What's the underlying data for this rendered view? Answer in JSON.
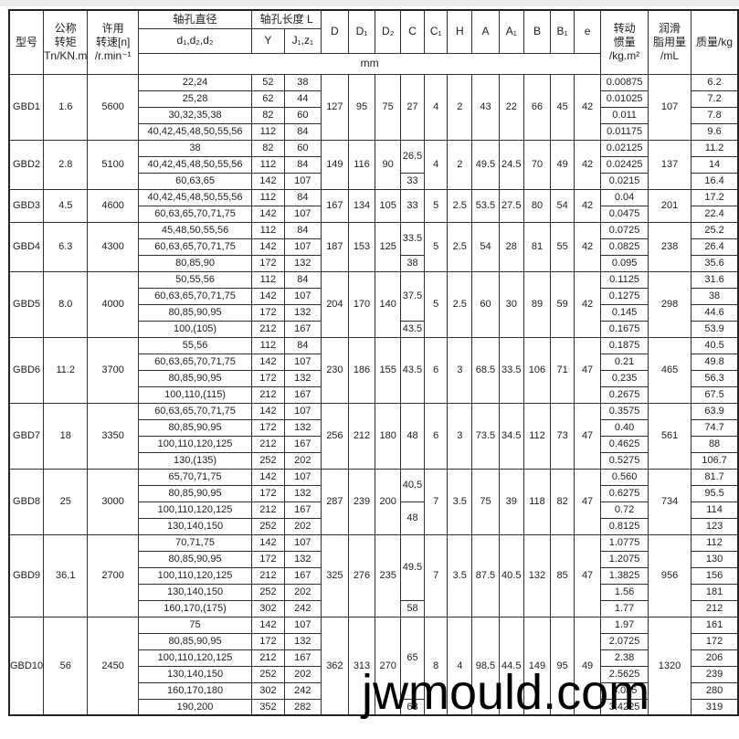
{
  "page": {
    "watermark": "jwmould.com"
  },
  "table": {
    "headers": {
      "model": "型号",
      "torque": "公称\n转矩\nTn/KN.m",
      "speed": "许用\n转速[n]\n/r.min⁻¹",
      "bore_dia": "轴孔直径",
      "bore_dia_sub": "d₁,d₂,d₂",
      "bore_len": "轴孔长度 L",
      "Y": "Y",
      "Jz": "J₁,z₁",
      "D": "D",
      "D1": "D₁",
      "D2": "D₂",
      "C": "C",
      "C1": "C₁",
      "H": "H",
      "A": "A",
      "A1": "A₁",
      "B": "B",
      "B1": "B₁",
      "e": "e",
      "inertia": "转动\n惯量\n/kg.m²",
      "grease": "润滑\n脂用量\n/mL",
      "mass": "质量/kg",
      "unit": "mm"
    },
    "models": [
      {
        "model": "GBD1",
        "torque": "1.6",
        "speed": "5600",
        "D": "127",
        "D1": "95",
        "D2": "75",
        "C": [
          {
            "v": "27",
            "span": 4
          }
        ],
        "C1": "4",
        "H": "2",
        "A": "43",
        "A1": "22",
        "B": "66",
        "B1": "45",
        "e": "42",
        "grease": "107",
        "rows": [
          {
            "bore": "22,24",
            "Y": "52",
            "Jz": "38",
            "inertia": "0.00875",
            "mass": "6.2"
          },
          {
            "bore": "25,28",
            "Y": "62",
            "Jz": "44",
            "inertia": "0.01025",
            "mass": "7.2"
          },
          {
            "bore": "30,32,35,38",
            "Y": "82",
            "Jz": "60",
            "inertia": "0.011",
            "mass": "7.8"
          },
          {
            "bore": "40,42,45,48,50,55,56",
            "Y": "112",
            "Jz": "84",
            "inertia": "0.01175",
            "mass": "9.6"
          }
        ]
      },
      {
        "model": "GBD2",
        "torque": "2.8",
        "speed": "5100",
        "D": "149",
        "D1": "116",
        "D2": "90",
        "C": [
          {
            "v": "26.5",
            "span": 2
          },
          {
            "v": "33",
            "span": 1
          }
        ],
        "C1": "4",
        "H": "2",
        "A": "49.5",
        "A1": "24.5",
        "B": "70",
        "B1": "49",
        "e": "42",
        "grease": "137",
        "rows": [
          {
            "bore": "38",
            "Y": "82",
            "Jz": "60",
            "inertia": "0.02125",
            "mass": "11.2"
          },
          {
            "bore": "40,42,45,48,50,55,56",
            "Y": "112",
            "Jz": "84",
            "inertia": "0.02425",
            "mass": "14"
          },
          {
            "bore": "60,63,65",
            "Y": "142",
            "Jz": "107",
            "inertia": "0.0215",
            "mass": "16.4"
          }
        ]
      },
      {
        "model": "GBD3",
        "torque": "4.5",
        "speed": "4600",
        "D": "167",
        "D1": "134",
        "D2": "105",
        "C": [
          {
            "v": "33",
            "span": 2
          }
        ],
        "C1": "5",
        "H": "2.5",
        "A": "53.5",
        "A1": "27.5",
        "B": "80",
        "B1": "54",
        "e": "42",
        "grease": "201",
        "rows": [
          {
            "bore": "40,42,45,48,50,55,56",
            "Y": "112",
            "Jz": "84",
            "inertia": "0.04",
            "mass": "17.2"
          },
          {
            "bore": "60,63,65,70,71,75",
            "Y": "142",
            "Jz": "107",
            "inertia": "0.0475",
            "mass": "22.4"
          }
        ]
      },
      {
        "model": "GBD4",
        "torque": "6.3",
        "speed": "4300",
        "D": "187",
        "D1": "153",
        "D2": "125",
        "C": [
          {
            "v": "33.5",
            "span": 2
          },
          {
            "v": "38",
            "span": 1
          }
        ],
        "C1": "5",
        "H": "2.5",
        "A": "54",
        "A1": "28",
        "B": "81",
        "B1": "55",
        "e": "42",
        "grease": "238",
        "rows": [
          {
            "bore": "45,48,50,55,56",
            "Y": "112",
            "Jz": "84",
            "inertia": "0.0725",
            "mass": "25.2"
          },
          {
            "bore": "60,63,65,70,71,75",
            "Y": "142",
            "Jz": "107",
            "inertia": "0.0825",
            "mass": "26.4"
          },
          {
            "bore": "80,85,90",
            "Y": "172",
            "Jz": "132",
            "inertia": "0.095",
            "mass": "35.6"
          }
        ]
      },
      {
        "model": "GBD5",
        "torque": "8.0",
        "speed": "4000",
        "D": "204",
        "D1": "170",
        "D2": "140",
        "C": [
          {
            "v": "37.5",
            "span": 3
          },
          {
            "v": "43.5",
            "span": 1
          }
        ],
        "C1": "5",
        "H": "2.5",
        "A": "60",
        "A1": "30",
        "B": "89",
        "B1": "59",
        "e": "42",
        "grease": "298",
        "rows": [
          {
            "bore": "50,55,56",
            "Y": "112",
            "Jz": "84",
            "inertia": "0.1125",
            "mass": "31.6"
          },
          {
            "bore": "60,63,65,70,71,75",
            "Y": "142",
            "Jz": "107",
            "inertia": "0.1275",
            "mass": "38"
          },
          {
            "bore": "80,85,90,95",
            "Y": "172",
            "Jz": "132",
            "inertia": "0.145",
            "mass": "44.6"
          },
          {
            "bore": "100,(105)",
            "Y": "212",
            "Jz": "167",
            "inertia": "0.1675",
            "mass": "53.9"
          }
        ]
      },
      {
        "model": "GBD6",
        "torque": "11.2",
        "speed": "3700",
        "D": "230",
        "D1": "186",
        "D2": "155",
        "C": [
          {
            "v": "43.5",
            "span": 4
          }
        ],
        "C1": "6",
        "H": "3",
        "A": "68.5",
        "A1": "33.5",
        "B": "106",
        "B1": "71",
        "e": "47",
        "grease": "465",
        "rows": [
          {
            "bore": "55,56",
            "Y": "112",
            "Jz": "84",
            "inertia": "0.1875",
            "mass": "40.5"
          },
          {
            "bore": "60,63,65,70,71,75",
            "Y": "142",
            "Jz": "107",
            "inertia": "0.21",
            "mass": "49.8"
          },
          {
            "bore": "80,85,90,95",
            "Y": "172",
            "Jz": "132",
            "inertia": "0.235",
            "mass": "56.3"
          },
          {
            "bore": "100,110,(115)",
            "Y": "212",
            "Jz": "167",
            "inertia": "0.2675",
            "mass": "67.5"
          }
        ]
      },
      {
        "model": "GBD7",
        "torque": "18",
        "speed": "3350",
        "D": "256",
        "D1": "212",
        "D2": "180",
        "C": [
          {
            "v": "48",
            "span": 4
          }
        ],
        "C1": "6",
        "H": "3",
        "A": "73.5",
        "A1": "34.5",
        "B": "112",
        "B1": "73",
        "e": "47",
        "grease": "561",
        "rows": [
          {
            "bore": "60,63,65,70,71,75",
            "Y": "142",
            "Jz": "107",
            "inertia": "0.3575",
            "mass": "63.9"
          },
          {
            "bore": "80,85,90,95",
            "Y": "172",
            "Jz": "132",
            "inertia": "0.40",
            "mass": "74.7"
          },
          {
            "bore": "100,110,120,125",
            "Y": "212",
            "Jz": "167",
            "inertia": "0.4625",
            "mass": "88"
          },
          {
            "bore": "130,(135)",
            "Y": "252",
            "Jz": "202",
            "inertia": "0.5275",
            "mass": "106.7"
          }
        ]
      },
      {
        "model": "GBD8",
        "torque": "25",
        "speed": "3000",
        "D": "287",
        "D1": "239",
        "D2": "200",
        "C": [
          {
            "v": "40.5",
            "span": 2
          },
          {
            "v": "48",
            "span": 2
          }
        ],
        "C1": "7",
        "H": "3.5",
        "A": "75",
        "A1": "39",
        "B": "118",
        "B1": "82",
        "e": "47",
        "grease": "734",
        "rows": [
          {
            "bore": "65,70,71,75",
            "Y": "142",
            "Jz": "107",
            "inertia": "0.560",
            "mass": "81.7"
          },
          {
            "bore": "80,85,90,95",
            "Y": "172",
            "Jz": "132",
            "inertia": "0.6275",
            "mass": "95.5"
          },
          {
            "bore": "100,110,120,125",
            "Y": "212",
            "Jz": "167",
            "inertia": "0.72",
            "mass": "114"
          },
          {
            "bore": "130,140,150",
            "Y": "252",
            "Jz": "202",
            "inertia": "0.8125",
            "mass": "123"
          }
        ]
      },
      {
        "model": "GBD9",
        "torque": "36.1",
        "speed": "2700",
        "D": "325",
        "D1": "276",
        "D2": "235",
        "C": [
          {
            "v": "49.5",
            "span": 4
          },
          {
            "v": "58",
            "span": 1
          }
        ],
        "C1": "7",
        "H": "3.5",
        "A": "87.5",
        "A1": "40.5",
        "B": "132",
        "B1": "85",
        "e": "47",
        "grease": "956",
        "rows": [
          {
            "bore": "70,71,75",
            "Y": "142",
            "Jz": "107",
            "inertia": "1.0775",
            "mass": "112"
          },
          {
            "bore": "80,85,90,95",
            "Y": "172",
            "Jz": "132",
            "inertia": "1.2075",
            "mass": "130"
          },
          {
            "bore": "100,110,120,125",
            "Y": "212",
            "Jz": "167",
            "inertia": "1.3825",
            "mass": "156"
          },
          {
            "bore": "130,140,150",
            "Y": "252",
            "Jz": "202",
            "inertia": "1.56",
            "mass": "181"
          },
          {
            "bore": "160,170,(175)",
            "Y": "302",
            "Jz": "242",
            "inertia": "1.77",
            "mass": "212"
          }
        ]
      },
      {
        "model": "GBD10",
        "torque": "56",
        "speed": "2450",
        "D": "362",
        "D1": "313",
        "D2": "270",
        "C": [
          {
            "v": "65",
            "span": 5
          },
          {
            "v": "68",
            "span": 1
          }
        ],
        "C1": "8",
        "H": "4",
        "A": "98.5",
        "A1": "44.5",
        "B": "149",
        "B1": "95",
        "e": "49",
        "grease": "1320",
        "rows": [
          {
            "bore": "75",
            "Y": "142",
            "Jz": "107",
            "inertia": "1.97",
            "mass": "161"
          },
          {
            "bore": "80,85,90,95",
            "Y": "172",
            "Jz": "132",
            "inertia": "2.0725",
            "mass": "172"
          },
          {
            "bore": "100,110,120,125",
            "Y": "212",
            "Jz": "167",
            "inertia": "2.38",
            "mass": "206"
          },
          {
            "bore": "130,140,150",
            "Y": "252",
            "Jz": "202",
            "inertia": "2.5625",
            "mass": "239"
          },
          {
            "bore": "160,170,180",
            "Y": "302",
            "Jz": "242",
            "inertia": "3.055",
            "mass": "280"
          },
          {
            "bore": "190,200",
            "Y": "352",
            "Jz": "282",
            "inertia": "3.4225",
            "mass": "319"
          }
        ]
      }
    ]
  }
}
